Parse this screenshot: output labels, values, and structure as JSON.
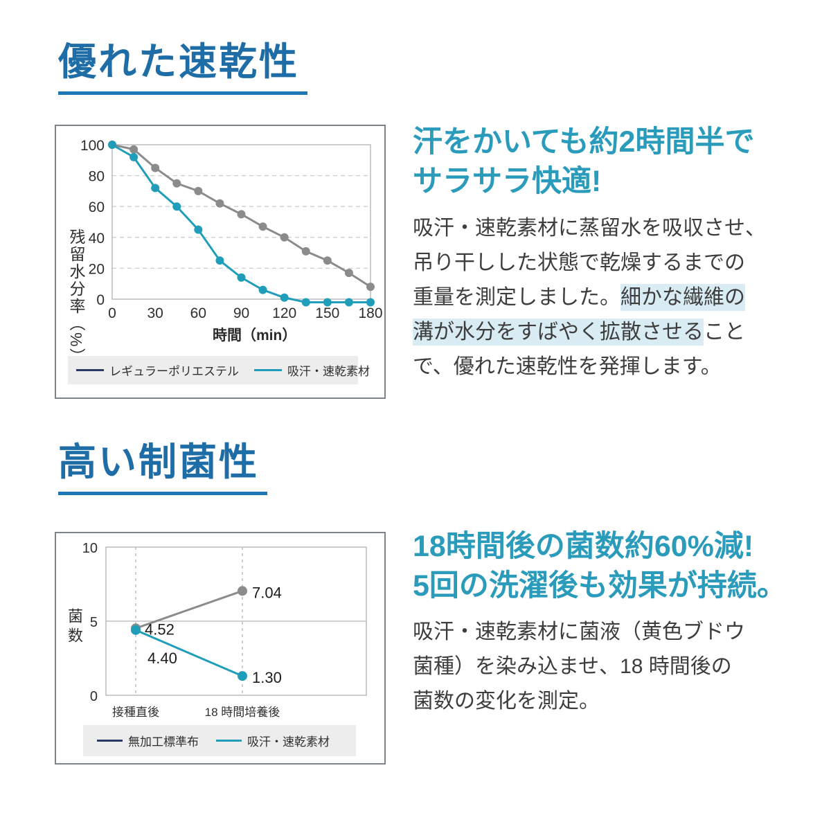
{
  "colors": {
    "title_blue": "#1e6da6",
    "underline_blue": "#1d77b4",
    "headline_teal": "#2a9bba",
    "series_teal": "#1f9db9",
    "series_gray": "#8b8b8b",
    "legend_navy": "#2b3a63",
    "highlight_bg": "#d9ecf3",
    "legend_bg": "#ededed"
  },
  "section1": {
    "title": "優れた速乾性",
    "headline_lines": [
      "汗をかいても約2時間半で",
      "サラサラ快適!"
    ],
    "body_segments": [
      {
        "text": "吸汗・速乾素材に蒸留水を吸収させ、\n吊り干しした状態で乾燥するまでの\n重量を測定しました。",
        "hl": false
      },
      {
        "text": "細かな繊維の",
        "hl": true
      },
      {
        "text": "\n",
        "hl": false
      },
      {
        "text": "溝が水分をすばやく拡散させる",
        "hl": true
      },
      {
        "text": "こと\nで、優れた速乾性を発揮します。",
        "hl": false
      }
    ]
  },
  "section2": {
    "title": "高い制菌性",
    "headline_lines": [
      "18時間後の菌数約60%減!",
      "5回の洗濯後も効果が持続。"
    ],
    "body": "吸汗・速乾素材に菌液（黄色ブドウ\n菌種）を染み込ませ、18 時間後の\n菌数の変化を測定。"
  },
  "chart_data": [
    {
      "type": "line",
      "x": [
        0,
        15,
        30,
        45,
        60,
        75,
        90,
        105,
        120,
        135,
        150,
        165,
        180
      ],
      "series": [
        {
          "name": "レギュラーポリエステル",
          "line_color": "#8b8b8b",
          "legend_color": "#2b3a63",
          "values": [
            100,
            97,
            85,
            75,
            70,
            62,
            55,
            47,
            40,
            31,
            25,
            17,
            8
          ]
        },
        {
          "name": "吸汗・速乾素材",
          "line_color": "#1f9db9",
          "legend_color": "#1f9db9",
          "values": [
            100,
            92,
            72,
            60,
            45,
            25,
            14,
            6,
            1,
            -2,
            -2,
            -2,
            -2
          ]
        }
      ],
      "xlabel": "時間（min）",
      "ylabel": "残留水分率（%）",
      "xticks": [
        0,
        30,
        60,
        90,
        120,
        150,
        180
      ],
      "yticks": [
        0,
        20,
        40,
        60,
        80,
        100
      ],
      "ylim": [
        0,
        100
      ],
      "grid": "dashed horizontal at 20/40/60/80",
      "legend_position": "bottom"
    },
    {
      "type": "line",
      "categories": [
        "接種直後",
        "18 時間培養後"
      ],
      "series": [
        {
          "name": "無加工標準布",
          "line_color": "#8b8b8b",
          "legend_color": "#2b3a63",
          "values": [
            4.52,
            7.04
          ],
          "point_labels": [
            "4.52",
            "7.04"
          ]
        },
        {
          "name": "吸汗・速乾素材",
          "line_color": "#1f9db9",
          "legend_color": "#1f9db9",
          "values": [
            4.4,
            1.3
          ],
          "point_labels": [
            "4.40",
            "1.30"
          ]
        }
      ],
      "ylabel": "菌数",
      "yticks": [
        0,
        5,
        10
      ],
      "ylim": [
        0,
        10
      ],
      "grid": "solid horizontal at 5, dashed vertical at each category",
      "legend_position": "bottom"
    }
  ]
}
